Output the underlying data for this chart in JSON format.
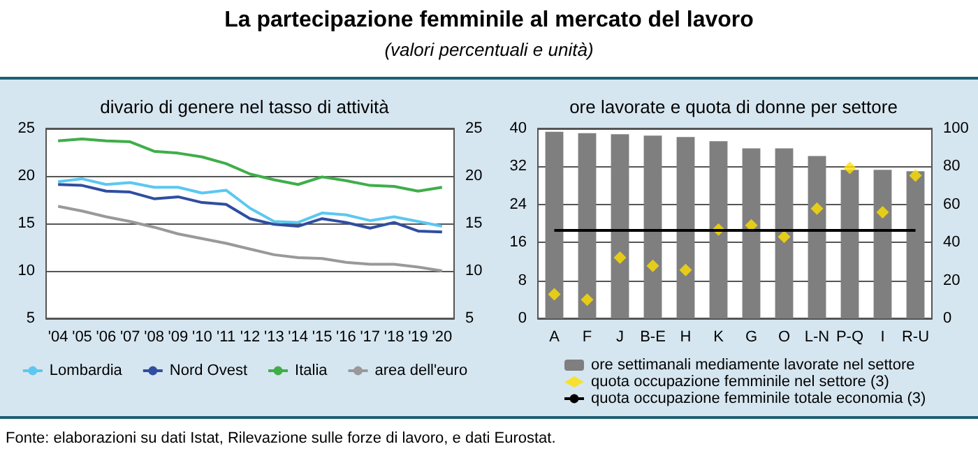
{
  "chart_data": [
    {
      "type": "line",
      "title": "divario di genere nel tasso di attività",
      "annotations": [
        "La partecipazione femminile al mercato del lavoro",
        "(valori percentuali e unità)",
        "Fonte: elaborazioni su dati Istat, Rilevazione sulle forze di lavoro, e dati Eurostat."
      ],
      "categories": [
        "'04",
        "'05",
        "'06",
        "'07",
        "'08",
        "'09",
        "'10",
        "'11",
        "'12",
        "'13",
        "'14",
        "'15",
        "'16",
        "'17",
        "'18",
        "'19",
        "'20"
      ],
      "series": [
        {
          "name": "Lombardia",
          "color": "#5bc8f0",
          "values": [
            19.4,
            19.7,
            19.1,
            19.3,
            18.8,
            18.8,
            18.2,
            18.5,
            16.6,
            15.2,
            15.1,
            16.1,
            15.9,
            15.3,
            15.7,
            15.2,
            14.7
          ]
        },
        {
          "name": "Nord Ovest",
          "color": "#2f4ea0",
          "values": [
            19.1,
            19.0,
            18.4,
            18.3,
            17.6,
            17.8,
            17.2,
            17.0,
            15.5,
            14.9,
            14.7,
            15.5,
            15.1,
            14.5,
            15.1,
            14.2,
            14.1
          ]
        },
        {
          "name": "Italia",
          "color": "#3fae49",
          "values": [
            23.7,
            23.9,
            23.7,
            23.6,
            22.6,
            22.4,
            22.0,
            21.3,
            20.2,
            19.6,
            19.1,
            19.9,
            19.5,
            19.0,
            18.9,
            18.4,
            18.8
          ]
        },
        {
          "name": "area dell'euro",
          "color": "#999999",
          "values": [
            16.8,
            16.3,
            15.7,
            15.2,
            14.6,
            13.9,
            13.4,
            12.9,
            12.3,
            11.7,
            11.4,
            11.3,
            10.9,
            10.7,
            10.7,
            10.4,
            10.0
          ]
        }
      ],
      "ylim": [
        5,
        25
      ],
      "yticks": [
        5,
        10,
        15,
        20,
        25
      ],
      "y2lim": [
        5,
        25
      ],
      "y2ticks": [
        5,
        10,
        15,
        20,
        25
      ],
      "grid": "y",
      "legend": "bottom",
      "marker": "none"
    },
    {
      "type": "bar",
      "title": "ore lavorate e quota di donne per settore",
      "categories": [
        "A",
        "F",
        "J",
        "B-E",
        "H",
        "K",
        "G",
        "O",
        "L-N",
        "P-Q",
        "I",
        "R-U"
      ],
      "series": [
        {
          "name": "ore settimanali mediamente lavorate nel settore",
          "color": "#7f7f7f",
          "values": [
            39.3,
            39.0,
            38.8,
            38.5,
            38.2,
            37.3,
            35.8,
            35.8,
            34.2,
            31.3,
            31.3,
            31.0
          ]
        },
        {
          "name": "quota occupazione femminile nel settore (3)",
          "type": "scatter",
          "axis": "y2",
          "color": "#ffe000",
          "values": [
            12.7,
            9.8,
            32,
            27.7,
            25.5,
            46.8,
            49,
            42.9,
            57.8,
            79.2,
            55.9,
            75.2
          ]
        },
        {
          "name": "quota occupazione femminile totale economia (3)",
          "type": "line",
          "axis": "y2",
          "marker": "none",
          "color": "#000000",
          "values": [
            46.3,
            46.3,
            46.3,
            46.3,
            46.3,
            46.3,
            46.3,
            46.3,
            46.3,
            46.3,
            46.3,
            46.3
          ]
        }
      ],
      "ylim": [
        0,
        40
      ],
      "yticks": [
        0,
        8,
        16,
        24,
        32,
        40
      ],
      "y2lim": [
        0,
        100
      ],
      "y2ticks": [
        0,
        20,
        40,
        60,
        80,
        100
      ],
      "grid": "y",
      "legend": "bottom",
      "marker": "diamond"
    }
  ]
}
